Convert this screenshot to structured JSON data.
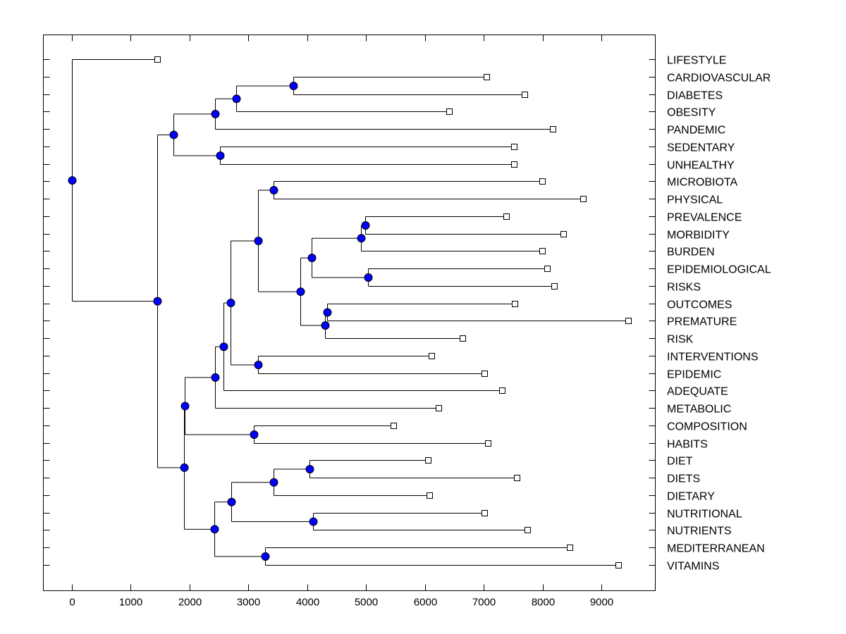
{
  "chart_data": {
    "type": "dendrogram",
    "title": "",
    "xlabel": "",
    "ylabel": "",
    "xlim": [
      -480,
      9915
    ],
    "xticks": [
      "0",
      "1000",
      "2000",
      "3000",
      "4000",
      "5000",
      "6000",
      "7000",
      "8000",
      "9000"
    ],
    "xtick_values": [
      0,
      1000,
      2000,
      3000,
      4000,
      5000,
      6000,
      7000,
      8000,
      9000
    ],
    "colors": {
      "node": "#0000ff",
      "leaf": "#ffffff",
      "line": "#000000"
    },
    "leaves": [
      {
        "label": "LIFESTYLE",
        "value": 1460
      },
      {
        "label": "CARDIOVASCULAR",
        "value": 7050
      },
      {
        "label": "DIABETES",
        "value": 7695
      },
      {
        "label": "OBESITY",
        "value": 6415
      },
      {
        "label": "PANDEMIC",
        "value": 8175
      },
      {
        "label": "SEDENTARY",
        "value": 7515
      },
      {
        "label": "UNHEALTHY",
        "value": 7515
      },
      {
        "label": "MICROBIOTA",
        "value": 7995
      },
      {
        "label": "PHYSICAL",
        "value": 8690
      },
      {
        "label": "PREVALENCE",
        "value": 7385
      },
      {
        "label": "MORBIDITY",
        "value": 8355
      },
      {
        "label": "BURDEN",
        "value": 7995
      },
      {
        "label": "EPIDEMIOLOGICAL",
        "value": 8080
      },
      {
        "label": "RISKS",
        "value": 8200
      },
      {
        "label": "OUTCOMES",
        "value": 7530
      },
      {
        "label": "PREMATURE",
        "value": 9455
      },
      {
        "label": "RISK",
        "value": 6640
      },
      {
        "label": "INTERVENTIONS",
        "value": 6115
      },
      {
        "label": "EPIDEMIC",
        "value": 7015
      },
      {
        "label": "ADEQUATE",
        "value": 7310
      },
      {
        "label": "METABOLIC",
        "value": 6235
      },
      {
        "label": "COMPOSITION",
        "value": 5470
      },
      {
        "label": "HABITS",
        "value": 7075
      },
      {
        "label": "DIET",
        "value": 6055
      },
      {
        "label": "DIETS",
        "value": 7565
      },
      {
        "label": "DIETARY",
        "value": 6080
      },
      {
        "label": "NUTRITIONAL",
        "value": 7015
      },
      {
        "label": "NUTRIENTS",
        "value": 7745
      },
      {
        "label": "MEDITERRANEAN",
        "value": 8460
      },
      {
        "label": "VITAMINS",
        "value": 9285
      }
    ],
    "tree": {
      "h": 0,
      "c": [
        0,
        {
          "h": 1460,
          "c": [
            {
              "h": 1735,
              "c": [
                {
                  "h": 2440,
                  "c": [
                    {
                      "h": 2800,
                      "c": [
                        {
                          "h": 3770,
                          "c": [
                            1,
                            2
                          ]
                        },
                        3
                      ]
                    },
                    4
                  ]
                },
                {
                  "h": 2515,
                  "c": [
                    5,
                    6
                  ]
                }
              ]
            },
            {
              "h": 1905,
              "c": [
                {
                  "h": 1925,
                  "c": [
                    {
                      "h": 2440,
                      "c": [
                        {
                          "h": 2585,
                          "c": [
                            {
                              "h": 2695,
                              "c": [
                                {
                                  "h": 3170,
                                  "c": [
                                    {
                                      "h": 3425,
                                      "c": [
                                        7,
                                        8
                                      ]
                                    },
                                    {
                                      "h": 3890,
                                      "c": [
                                        {
                                          "h": 4080,
                                          "c": [
                                            {
                                              "h": 4910,
                                              "c": [
                                                {
                                                  "h": 4990,
                                                  "c": [
                                                    9,
                                                    10
                                                  ]
                                                },
                                                11
                                              ]
                                            },
                                            {
                                              "h": 5030,
                                              "c": [
                                                12,
                                                13
                                              ]
                                            }
                                          ]
                                        },
                                        {
                                          "h": 4310,
                                          "c": [
                                            {
                                              "h": 4345,
                                              "c": [
                                                14,
                                                15
                                              ]
                                            },
                                            16
                                          ]
                                        }
                                      ]
                                    }
                                  ]
                                },
                                {
                                  "h": 3170,
                                  "c": [
                                    17,
                                    18
                                  ]
                                }
                              ]
                            },
                            19
                          ]
                        },
                        20
                      ]
                    },
                    {
                      "h": 3100,
                      "c": [
                        21,
                        22
                      ]
                    }
                  ]
                },
                {
                  "h": 2430,
                  "c": [
                    {
                      "h": 2715,
                      "c": [
                        {
                          "h": 3435,
                          "c": [
                            {
                              "h": 4045,
                              "c": [
                                23,
                                24
                              ]
                            },
                            25
                          ]
                        },
                        {
                          "h": 4105,
                          "c": [
                            26,
                            27
                          ]
                        }
                      ]
                    },
                    {
                      "h": 3290,
                      "c": [
                        28,
                        29
                      ]
                    }
                  ]
                }
              ]
            }
          ]
        }
      ]
    }
  }
}
